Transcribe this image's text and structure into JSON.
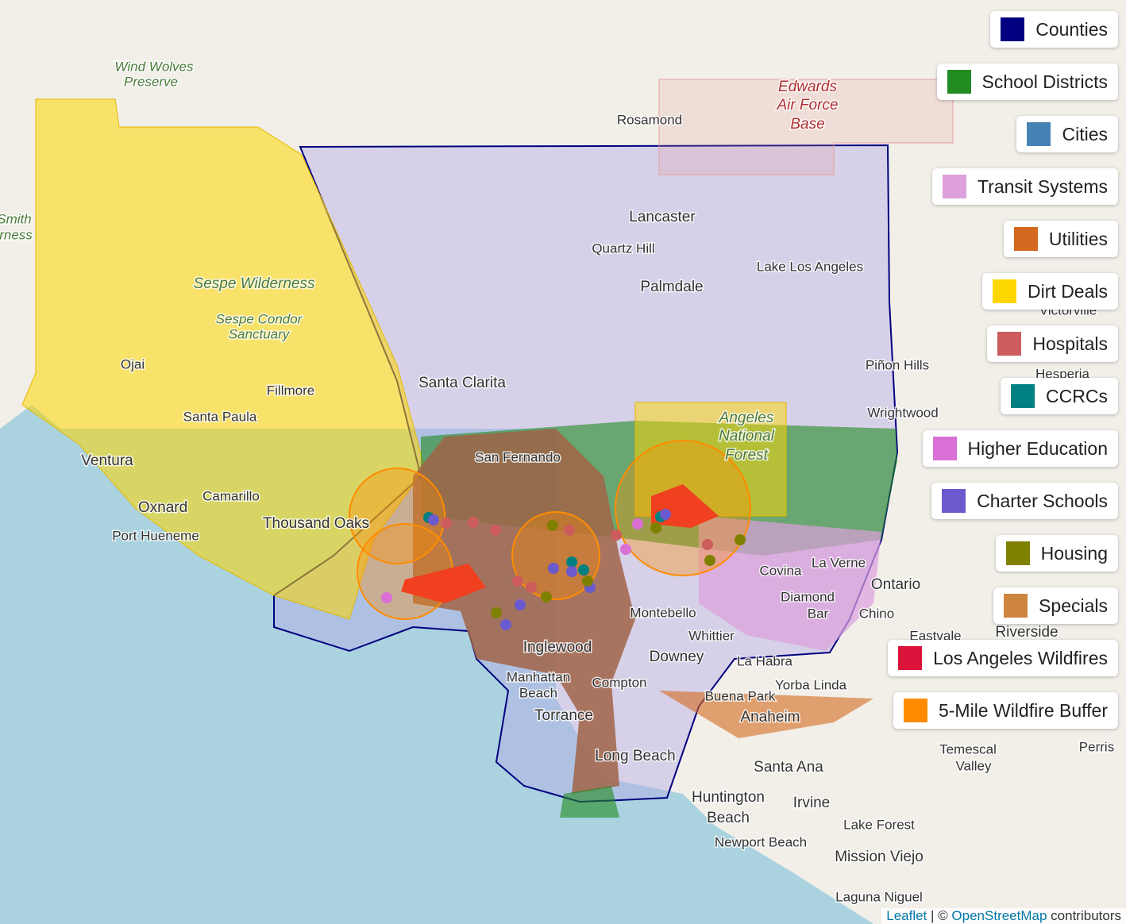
{
  "legend": [
    {
      "label": "Counties",
      "color": "#000080"
    },
    {
      "label": "School Districts",
      "color": "#228b22"
    },
    {
      "label": "Cities",
      "color": "#4682b4"
    },
    {
      "label": "Transit Systems",
      "color": "#dda0dd"
    },
    {
      "label": "Utilities",
      "color": "#d2691e"
    },
    {
      "label": "Dirt Deals",
      "color": "#ffd700"
    },
    {
      "label": "Hospitals",
      "color": "#cd5c5c"
    },
    {
      "label": "CCRCs",
      "color": "#008080"
    },
    {
      "label": "Higher Education",
      "color": "#da70d6"
    },
    {
      "label": "Charter Schools",
      "color": "#6a5acd"
    },
    {
      "label": "Housing",
      "color": "#808000"
    },
    {
      "label": "Specials",
      "color": "#cd853f"
    },
    {
      "label": "Los Angeles Wildfires",
      "color": "#dc143c"
    },
    {
      "label": "5-Mile Wildfire Buffer",
      "color": "#ff8c00"
    }
  ],
  "places": [
    "Wind Wolves",
    "Preserve",
    "Edwards",
    "Air Force",
    "Base",
    "Rosamond",
    "Lancaster",
    "Quartz Hill",
    "Lake Los Angeles",
    "Palmdale",
    "Sespe Wilderness",
    "Sespe Condor",
    "Sanctuary",
    "Ojai",
    "Fillmore",
    "Santa Clarita",
    "Piñon Hills",
    "Wrightwood",
    "Santa Paula",
    "Ventura",
    "Angeles",
    "National",
    "Forest",
    "Oxnard",
    "Camarillo",
    "Thousand Oaks",
    "Port Hueneme",
    "San Fernando",
    "Covina",
    "La Verne",
    "Ontario",
    "Diamond",
    "Bar",
    "Chino",
    "Montebello",
    "Whittier",
    "Downey",
    "Inglewood",
    "Manhattan",
    "Beach",
    "Compton",
    "La Habra",
    "Yorba Linda",
    "Buena Park",
    "Anaheim",
    "Torrance",
    "Long Beach",
    "Santa Ana",
    "Huntington",
    "Beach",
    "Irvine",
    "Newport Beach",
    "Lake Forest",
    "Mission Viejo",
    "Laguna Niguel",
    "Temescal",
    "Valley",
    "Eastvale",
    "Riverside",
    "Perris",
    "Smith",
    "rness",
    "Victorville",
    "Hesperia"
  ],
  "attribution": {
    "leaflet": "Leaflet",
    "separator": "| ©",
    "osm": "OpenStreetMap",
    "suffix": "contributors"
  }
}
